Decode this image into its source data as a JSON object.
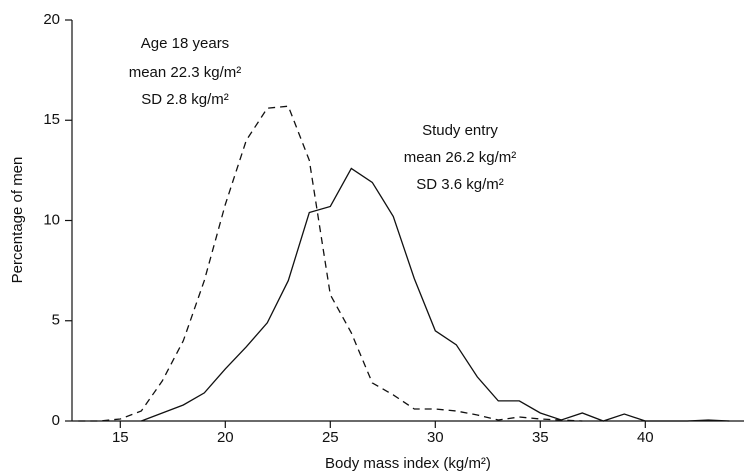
{
  "chart_data": {
    "type": "line",
    "x_label": "Body mass index (kg/m²)",
    "y_label": "Percentage of men",
    "annotations": [
      "Age 18 years",
      "mean 22.3 kg/m²",
      "SD 2.8 kg/m²",
      "Study entry",
      "mean 26.2 kg/m²",
      "SD 3.6 kg/m²"
    ],
    "x": [
      13,
      14,
      15,
      16,
      17,
      18,
      19,
      20,
      21,
      22,
      23,
      24,
      25,
      26,
      27,
      28,
      29,
      30,
      31,
      32,
      33,
      34,
      35,
      36,
      37,
      38,
      39,
      40,
      41,
      42,
      43,
      44
    ],
    "series": [
      {
        "name": "Age 18 years",
        "color": "#111111",
        "line_style": "dashed",
        "values": [
          0,
          0,
          0.1,
          0.5,
          2,
          4,
          7,
          10.8,
          14,
          15.6,
          15.7,
          13,
          6.3,
          4.4,
          1.9,
          1.3,
          0.6,
          0.6,
          0.5,
          0.3,
          0.05,
          0.2,
          0.1,
          0.05,
          0,
          null,
          null,
          null,
          null,
          null,
          null,
          null
        ]
      },
      {
        "name": "Study entry",
        "color": "#111111",
        "line_style": "solid",
        "values": [
          null,
          null,
          null,
          0,
          0.4,
          0.8,
          1.4,
          2.6,
          3.7,
          4.9,
          7,
          10.4,
          10.7,
          12.6,
          11.9,
          10.2,
          7.1,
          4.5,
          3.8,
          2.2,
          1,
          1,
          0.4,
          0.05,
          0.4,
          0,
          0.35,
          0,
          0,
          0,
          0.05,
          0
        ]
      }
    ],
    "xlim": [
      12.7,
      44.7
    ],
    "ylim": [
      0,
      20
    ],
    "xticks": [
      15,
      20,
      25,
      30,
      35,
      40
    ],
    "yticks": [
      0,
      5,
      10,
      15,
      20
    ]
  }
}
